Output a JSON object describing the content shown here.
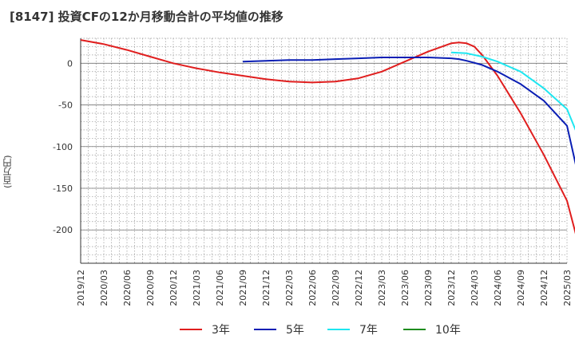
{
  "chart_data": {
    "type": "line",
    "title": "[8147]  投資CFの12か月移動合計の平均値の推移",
    "ylabel": "(百万円)",
    "xlabel": "",
    "ylim": [
      -240,
      30
    ],
    "yticks": [
      0,
      -50,
      -100,
      -150,
      -200
    ],
    "x_categories": [
      "2019/12",
      "2020/03",
      "2020/06",
      "2020/09",
      "2020/12",
      "2021/03",
      "2021/06",
      "2021/09",
      "2021/12",
      "2022/03",
      "2022/06",
      "2022/09",
      "2022/12",
      "2023/03",
      "2023/06",
      "2023/09",
      "2023/12",
      "2024/03",
      "2024/06",
      "2024/09",
      "2024/12",
      "2025/03"
    ],
    "grid": true,
    "legend_position": "bottom",
    "series": [
      {
        "name": "3年",
        "color": "#e01e1e",
        "points": [
          [
            "2019/12",
            28
          ],
          [
            "2020/03",
            23
          ],
          [
            "2020/06",
            16
          ],
          [
            "2020/09",
            8
          ],
          [
            "2020/12",
            0
          ],
          [
            "2021/03",
            -6
          ],
          [
            "2021/06",
            -11
          ],
          [
            "2021/09",
            -15
          ],
          [
            "2021/12",
            -19
          ],
          [
            "2022/03",
            -22
          ],
          [
            "2022/06",
            -23
          ],
          [
            "2022/09",
            -22
          ],
          [
            "2022/12",
            -18
          ],
          [
            "2023/03",
            -10
          ],
          [
            "2023/06",
            2
          ],
          [
            "2023/09",
            14
          ],
          [
            "2023/12",
            24
          ],
          [
            "2024/01",
            25
          ],
          [
            "2024/02",
            24
          ],
          [
            "2024/03",
            20
          ],
          [
            "2024/04",
            10
          ],
          [
            "2024/06",
            -15
          ],
          [
            "2024/09",
            -60
          ],
          [
            "2024/12",
            -110
          ],
          [
            "2025/03",
            -165
          ],
          [
            "2025/05",
            -235
          ]
        ]
      },
      {
        "name": "5年",
        "color": "#0a1eb4",
        "points": [
          [
            "2021/09",
            2
          ],
          [
            "2021/12",
            3
          ],
          [
            "2022/03",
            4
          ],
          [
            "2022/06",
            4
          ],
          [
            "2022/09",
            5
          ],
          [
            "2022/12",
            6
          ],
          [
            "2023/03",
            7
          ],
          [
            "2023/06",
            7
          ],
          [
            "2023/09",
            7
          ],
          [
            "2023/12",
            6
          ],
          [
            "2024/01",
            5
          ],
          [
            "2024/02",
            3
          ],
          [
            "2024/04",
            -2
          ],
          [
            "2024/06",
            -10
          ],
          [
            "2024/09",
            -25
          ],
          [
            "2024/12",
            -45
          ],
          [
            "2025/03",
            -75
          ],
          [
            "2025/05",
            -157
          ]
        ]
      },
      {
        "name": "7年",
        "color": "#1ee6f0",
        "points": [
          [
            "2023/12",
            13
          ],
          [
            "2024/02",
            12
          ],
          [
            "2024/04",
            8
          ],
          [
            "2024/06",
            2
          ],
          [
            "2024/09",
            -10
          ],
          [
            "2024/12",
            -30
          ],
          [
            "2025/03",
            -55
          ],
          [
            "2025/05",
            -100
          ]
        ]
      },
      {
        "name": "10年",
        "color": "#1e8c1e",
        "points": []
      }
    ]
  }
}
